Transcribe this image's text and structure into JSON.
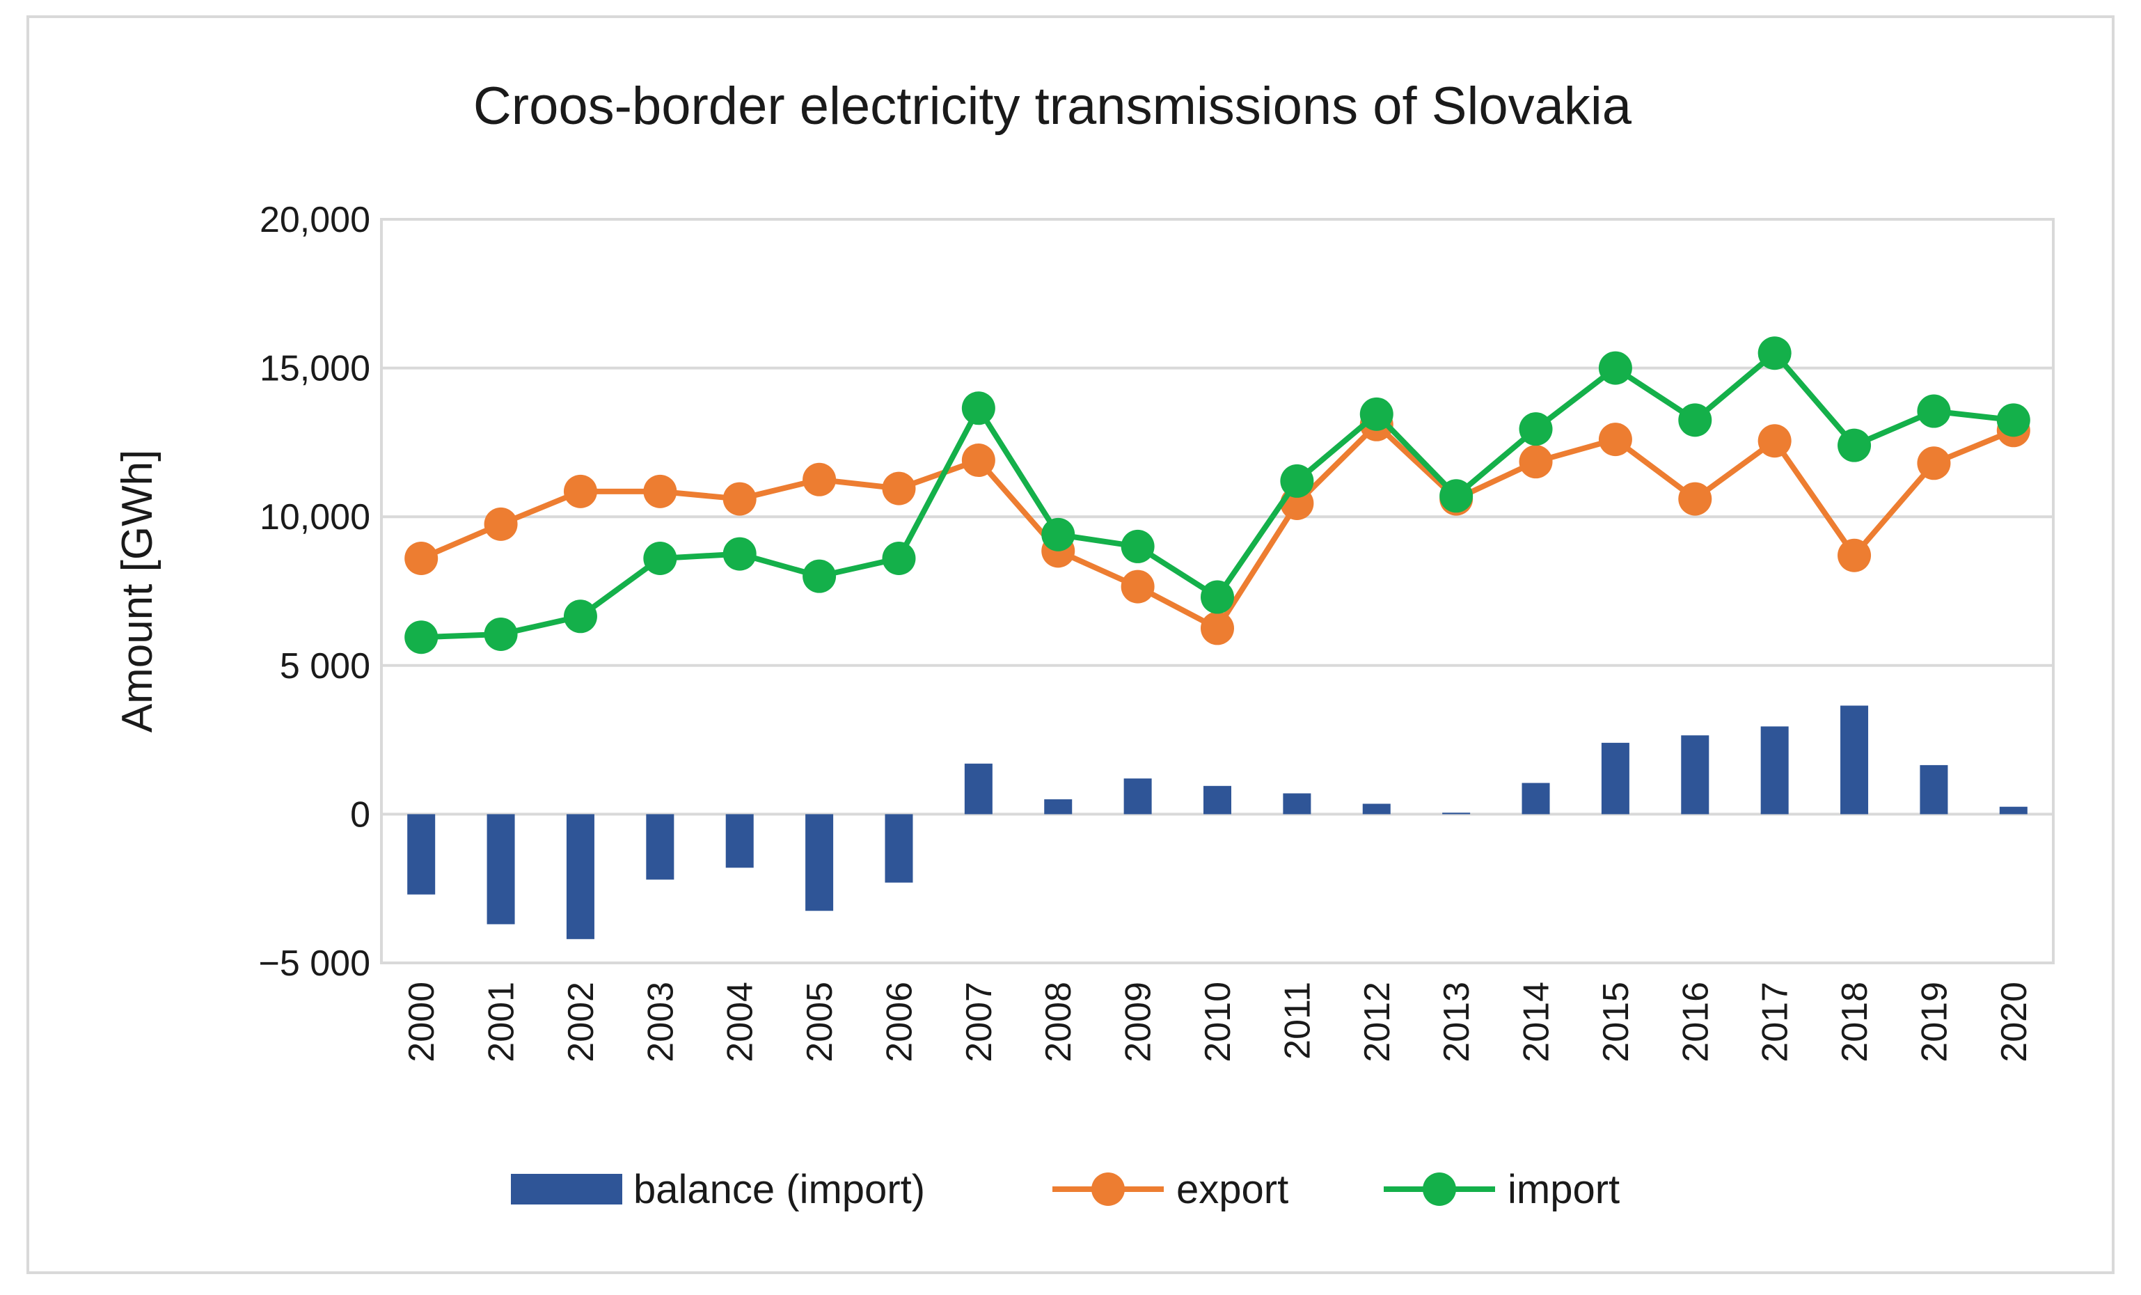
{
  "chart_data": {
    "type": "bar+line",
    "title": "Croos-border electricity transmissions of Slovakia",
    "ylabel": "Amount [GWh]",
    "xlabel": "",
    "ylim": [
      -5000,
      20000
    ],
    "yticks": [
      -5000,
      0,
      5000,
      10000,
      15000,
      20000
    ],
    "ytick_labels": [
      "−5 000",
      "0",
      "5 000",
      "10,000",
      "15,000",
      "20,000"
    ],
    "grid": true,
    "legend_position": "bottom",
    "categories": [
      "2000",
      "2001",
      "2002",
      "2003",
      "2004",
      "2005",
      "2006",
      "2007",
      "2008",
      "2009",
      "2010",
      "2011",
      "2012",
      "2013",
      "2014",
      "2015",
      "2016",
      "2017",
      "2018",
      "2019",
      "2020"
    ],
    "series": [
      {
        "name": "balance (import)",
        "type": "bar",
        "color": "#2f5597",
        "values": [
          -2700,
          -3700,
          -4200,
          -2200,
          -1800,
          -3250,
          -2300,
          1700,
          500,
          1200,
          950,
          700,
          350,
          50,
          1050,
          2400,
          2650,
          2950,
          3650,
          1650,
          250
        ]
      },
      {
        "name": "export",
        "type": "line",
        "color": "#ed7d31",
        "values": [
          8600,
          9750,
          10850,
          10850,
          10600,
          11250,
          10950,
          11900,
          8850,
          7650,
          6250,
          10450,
          13100,
          10600,
          11850,
          12600,
          10600,
          12550,
          8700,
          11800,
          12900
        ]
      },
      {
        "name": "import",
        "type": "line",
        "color": "#14b04a",
        "values": [
          5950,
          6050,
          6650,
          8600,
          8750,
          8000,
          8600,
          13650,
          9400,
          9000,
          7300,
          11200,
          13450,
          10700,
          12950,
          15000,
          13250,
          15500,
          12400,
          13550,
          13250
        ]
      }
    ]
  }
}
